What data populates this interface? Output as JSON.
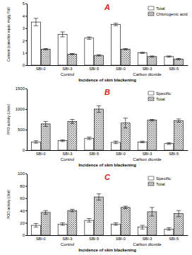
{
  "chart_data": [
    {
      "type": "bar",
      "title": "A",
      "y_label": "Content (catechin equiv. mg/g FW)",
      "x_label": "Incidence of skin blackening",
      "categories": [
        "SBI-0",
        "SBI-3",
        "SBI-5",
        "SBI-0",
        "SBI-3",
        "SBI-5"
      ],
      "annotations": [
        "Control",
        "Carbon dioxide"
      ],
      "series": [
        {
          "name": "Total",
          "color": "#ffffff",
          "values": [
            3.5,
            2.5,
            2.2,
            3.3,
            1.0,
            0.7
          ],
          "errors": [
            0.3,
            0.2,
            0.1,
            0.1,
            0.05,
            0.05
          ]
        },
        {
          "name": "Chlorogenic acid",
          "color": "#555555",
          "values": [
            1.3,
            0.9,
            0.8,
            1.3,
            0.7,
            0.5
          ],
          "errors": [
            0.05,
            0.05,
            0.05,
            0.05,
            0.05,
            0.05
          ]
        }
      ],
      "ylim": [
        0,
        5
      ],
      "yticks": [
        0,
        1,
        2,
        3,
        4,
        5
      ],
      "grid": false,
      "legend": "upper right"
    },
    {
      "type": "bar",
      "title": "B",
      "y_label": "PPO activity (Units)",
      "x_label": "Incidence of skin blackening",
      "categories": [
        "SBI-0",
        "SBI-3",
        "SBI-5",
        "SBI-0",
        "SBI-3",
        "SBI-5"
      ],
      "annotations": [
        "Control",
        "Carbon dioxide"
      ],
      "series": [
        {
          "name": "Specific",
          "color": "#ffffff",
          "values": [
            200,
            230,
            290,
            190,
            200,
            160
          ],
          "errors": [
            30,
            20,
            30,
            30,
            20,
            20
          ]
        },
        {
          "name": "Total",
          "color": "#555555",
          "values": [
            640,
            700,
            1000,
            660,
            730,
            720
          ],
          "errors": [
            60,
            50,
            80,
            120,
            20,
            40
          ]
        }
      ],
      "ylim": [
        0,
        1500
      ],
      "yticks": [
        0,
        500,
        1000,
        1500
      ],
      "grid": false,
      "legend": "upper right"
    },
    {
      "type": "bar",
      "title": "C",
      "y_label": "POD activity (Unit)",
      "x_label": "Incidence of skin blackening",
      "categories": [
        "SBI-0",
        "SBI-3",
        "SBI-5",
        "SBI-0",
        "SBI-3",
        "SBI-5"
      ],
      "annotations": [
        "Control",
        "Carbon dioxide"
      ],
      "series": [
        {
          "name": "Specific",
          "color": "#ffffff",
          "values": [
            16,
            18,
            24,
            18,
            13,
            10
          ],
          "errors": [
            3,
            2,
            3,
            2,
            3,
            2
          ]
        },
        {
          "name": "Total",
          "color": "#555555",
          "values": [
            37,
            40,
            62,
            45,
            38,
            35
          ],
          "errors": [
            3,
            2,
            5,
            2,
            7,
            5
          ]
        }
      ],
      "ylim": [
        0,
        100
      ],
      "yticks": [
        0,
        20,
        40,
        60,
        80,
        100
      ],
      "grid": false,
      "legend": "upper right"
    }
  ]
}
